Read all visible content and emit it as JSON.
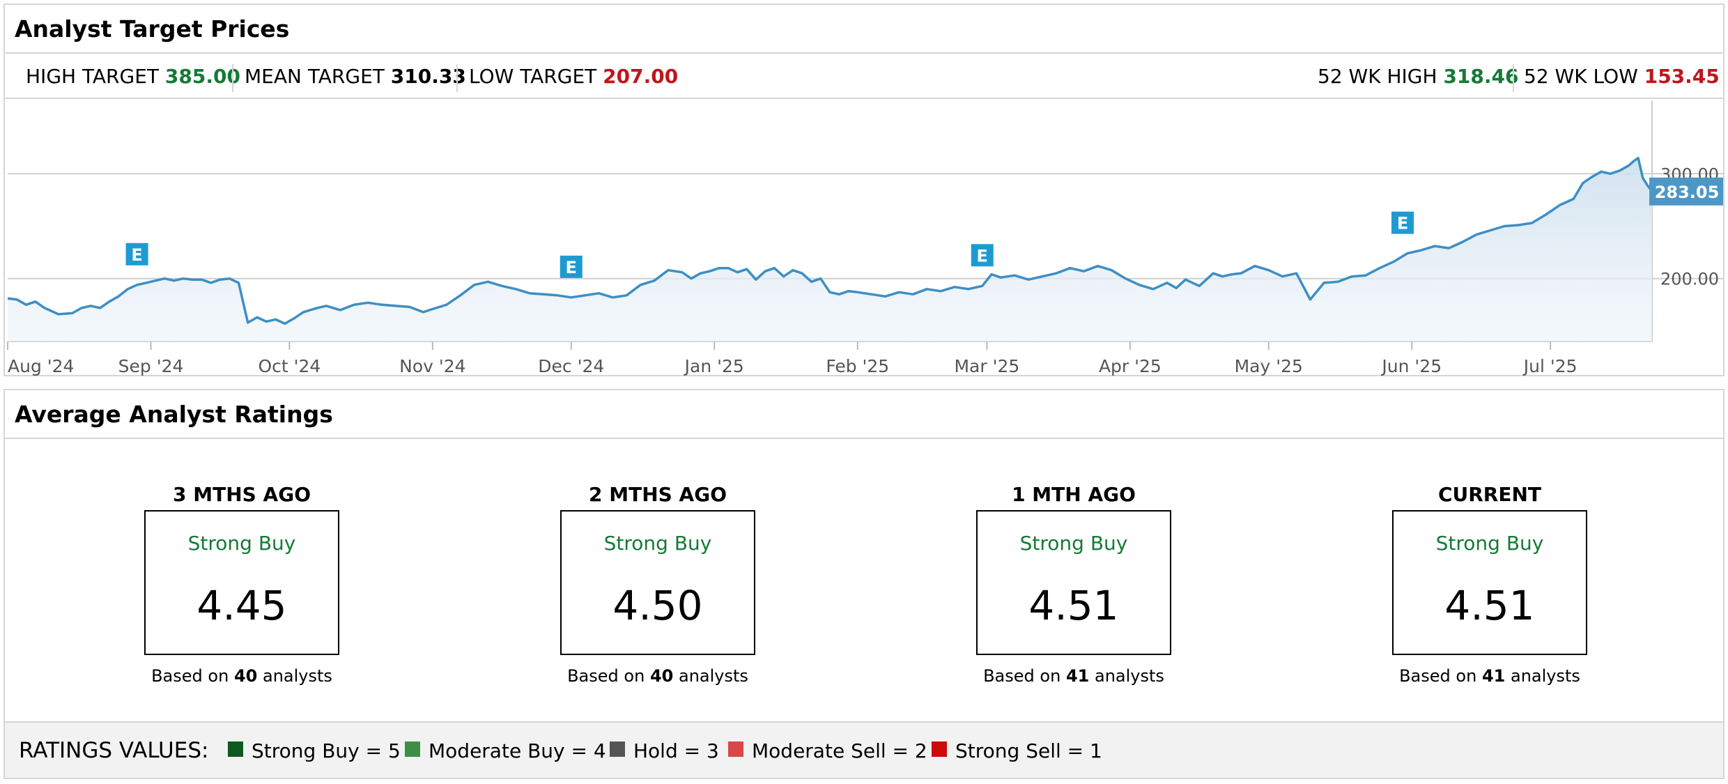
{
  "target_panel": {
    "title": "Analyst Target Prices",
    "high_target_label": "HIGH TARGET",
    "high_target_value": "385.00",
    "mean_target_label": "MEAN TARGET",
    "mean_target_value": "310.33",
    "low_target_label": "LOW TARGET",
    "low_target_value": "207.00",
    "wk52_high_label": "52 WK HIGH",
    "wk52_high_value": "318.46",
    "wk52_low_label": "52 WK LOW",
    "wk52_low_value": "153.45"
  },
  "colors": {
    "positive": "#157a36",
    "negative": "#c0151c",
    "line": "#3d8fc4",
    "earnings_marker": "#1d9bd1",
    "current_price_badge": "#4d97c7"
  },
  "chart_data": {
    "type": "area",
    "y_ticks": [
      "300.00",
      "200.00"
    ],
    "ylim": [
      140,
      370
    ],
    "x_tick_labels": [
      "Aug '24",
      "Sep '24",
      "Oct '24",
      "Nov '24",
      "Dec '24",
      "Jan '25",
      "Feb '25",
      "Mar '25",
      "Apr '25",
      "May '25",
      "Jun '25",
      "Jul '25"
    ],
    "x_tick_dates": [
      "2024-08-01",
      "2024-09-01",
      "2024-10-01",
      "2024-11-01",
      "2024-12-01",
      "2025-01-01",
      "2025-02-01",
      "2025-03-01",
      "2025-04-01",
      "2025-05-01",
      "2025-06-01",
      "2025-07-01"
    ],
    "x_range": [
      "2024-08-01",
      "2025-07-23"
    ],
    "current_price": "283.05",
    "earnings_marker_label": "E",
    "earnings_dates": [
      "2024-08-29",
      "2024-12-01",
      "2025-02-28",
      "2025-05-30"
    ],
    "series": [
      {
        "points": [
          [
            "2024-08-01",
            181
          ],
          [
            "2024-08-03",
            180
          ],
          [
            "2024-08-05",
            175
          ],
          [
            "2024-08-07",
            178
          ],
          [
            "2024-08-09",
            172
          ],
          [
            "2024-08-12",
            166
          ],
          [
            "2024-08-15",
            167
          ],
          [
            "2024-08-17",
            172
          ],
          [
            "2024-08-19",
            174
          ],
          [
            "2024-08-21",
            172
          ],
          [
            "2024-08-23",
            178
          ],
          [
            "2024-08-25",
            183
          ],
          [
            "2024-08-27",
            190
          ],
          [
            "2024-08-29",
            194
          ],
          [
            "2024-08-31",
            196
          ],
          [
            "2024-09-02",
            198
          ],
          [
            "2024-09-04",
            200
          ],
          [
            "2024-09-06",
            198
          ],
          [
            "2024-09-08",
            200
          ],
          [
            "2024-09-10",
            199
          ],
          [
            "2024-09-12",
            199
          ],
          [
            "2024-09-14",
            196
          ],
          [
            "2024-09-16",
            199
          ],
          [
            "2024-09-18",
            200
          ],
          [
            "2024-09-20",
            196
          ],
          [
            "2024-09-22",
            158
          ],
          [
            "2024-09-24",
            163
          ],
          [
            "2024-09-26",
            159
          ],
          [
            "2024-09-28",
            161
          ],
          [
            "2024-09-30",
            157
          ],
          [
            "2024-10-02",
            162
          ],
          [
            "2024-10-04",
            168
          ],
          [
            "2024-10-07",
            172
          ],
          [
            "2024-10-09",
            174
          ],
          [
            "2024-10-12",
            170
          ],
          [
            "2024-10-15",
            175
          ],
          [
            "2024-10-18",
            177
          ],
          [
            "2024-10-21",
            175
          ],
          [
            "2024-10-24",
            174
          ],
          [
            "2024-10-27",
            173
          ],
          [
            "2024-10-30",
            168
          ],
          [
            "2024-11-01",
            171
          ],
          [
            "2024-11-04",
            175
          ],
          [
            "2024-11-07",
            184
          ],
          [
            "2024-11-10",
            194
          ],
          [
            "2024-11-13",
            197
          ],
          [
            "2024-11-16",
            193
          ],
          [
            "2024-11-19",
            190
          ],
          [
            "2024-11-22",
            186
          ],
          [
            "2024-11-25",
            185
          ],
          [
            "2024-11-28",
            184
          ],
          [
            "2024-12-01",
            182
          ],
          [
            "2024-12-04",
            184
          ],
          [
            "2024-12-07",
            186
          ],
          [
            "2024-12-10",
            182
          ],
          [
            "2024-12-13",
            184
          ],
          [
            "2024-12-16",
            194
          ],
          [
            "2024-12-19",
            198
          ],
          [
            "2024-12-22",
            208
          ],
          [
            "2024-12-25",
            206
          ],
          [
            "2024-12-27",
            200
          ],
          [
            "2024-12-29",
            205
          ],
          [
            "2024-12-31",
            207
          ],
          [
            "2025-01-02",
            210
          ],
          [
            "2025-01-04",
            210
          ],
          [
            "2025-01-06",
            206
          ],
          [
            "2025-01-08",
            209
          ],
          [
            "2025-01-10",
            199
          ],
          [
            "2025-01-12",
            207
          ],
          [
            "2025-01-14",
            210
          ],
          [
            "2025-01-16",
            202
          ],
          [
            "2025-01-18",
            208
          ],
          [
            "2025-01-20",
            205
          ],
          [
            "2025-01-22",
            197
          ],
          [
            "2025-01-24",
            200
          ],
          [
            "2025-01-26",
            187
          ],
          [
            "2025-01-28",
            185
          ],
          [
            "2025-01-30",
            188
          ],
          [
            "2025-02-01",
            187
          ],
          [
            "2025-02-04",
            185
          ],
          [
            "2025-02-07",
            183
          ],
          [
            "2025-02-10",
            187
          ],
          [
            "2025-02-13",
            185
          ],
          [
            "2025-02-16",
            190
          ],
          [
            "2025-02-19",
            188
          ],
          [
            "2025-02-22",
            192
          ],
          [
            "2025-02-25",
            190
          ],
          [
            "2025-02-28",
            193
          ],
          [
            "2025-03-02",
            204
          ],
          [
            "2025-03-04",
            201
          ],
          [
            "2025-03-07",
            203
          ],
          [
            "2025-03-10",
            199
          ],
          [
            "2025-03-13",
            202
          ],
          [
            "2025-03-16",
            205
          ],
          [
            "2025-03-19",
            210
          ],
          [
            "2025-03-22",
            207
          ],
          [
            "2025-03-25",
            212
          ],
          [
            "2025-03-28",
            208
          ],
          [
            "2025-03-31",
            200
          ],
          [
            "2025-04-03",
            194
          ],
          [
            "2025-04-06",
            190
          ],
          [
            "2025-04-09",
            196
          ],
          [
            "2025-04-11",
            191
          ],
          [
            "2025-04-13",
            199
          ],
          [
            "2025-04-16",
            193
          ],
          [
            "2025-04-19",
            205
          ],
          [
            "2025-04-21",
            202
          ],
          [
            "2025-04-23",
            204
          ],
          [
            "2025-04-25",
            205
          ],
          [
            "2025-04-28",
            212
          ],
          [
            "2025-05-01",
            208
          ],
          [
            "2025-05-04",
            202
          ],
          [
            "2025-05-07",
            205
          ],
          [
            "2025-05-10",
            180
          ],
          [
            "2025-05-13",
            196
          ],
          [
            "2025-05-16",
            197
          ],
          [
            "2025-05-19",
            202
          ],
          [
            "2025-05-22",
            203
          ],
          [
            "2025-05-25",
            210
          ],
          [
            "2025-05-28",
            216
          ],
          [
            "2025-05-31",
            224
          ],
          [
            "2025-06-03",
            227
          ],
          [
            "2025-06-06",
            231
          ],
          [
            "2025-06-09",
            229
          ],
          [
            "2025-06-12",
            235
          ],
          [
            "2025-06-15",
            242
          ],
          [
            "2025-06-18",
            246
          ],
          [
            "2025-06-21",
            250
          ],
          [
            "2025-06-24",
            251
          ],
          [
            "2025-06-27",
            253
          ],
          [
            "2025-06-30",
            261
          ],
          [
            "2025-07-03",
            270
          ],
          [
            "2025-07-06",
            276
          ],
          [
            "2025-07-08",
            291
          ],
          [
            "2025-07-10",
            297
          ],
          [
            "2025-07-12",
            302
          ],
          [
            "2025-07-14",
            300
          ],
          [
            "2025-07-16",
            303
          ],
          [
            "2025-07-18",
            308
          ],
          [
            "2025-07-19",
            312
          ],
          [
            "2025-07-20",
            315
          ],
          [
            "2025-07-21",
            296
          ],
          [
            "2025-07-22",
            289
          ],
          [
            "2025-07-23",
            283
          ]
        ]
      }
    ]
  },
  "ratings_panel": {
    "title": "Average Analyst Ratings",
    "periods": [
      {
        "heading": "3 MTHS AGO",
        "label": "Strong Buy",
        "score": "4.45",
        "foot_prefix": "Based on",
        "count": "40",
        "foot_suffix": "analysts"
      },
      {
        "heading": "2 MTHS AGO",
        "label": "Strong Buy",
        "score": "4.50",
        "foot_prefix": "Based on",
        "count": "40",
        "foot_suffix": "analysts"
      },
      {
        "heading": "1 MTH AGO",
        "label": "Strong Buy",
        "score": "4.51",
        "foot_prefix": "Based on",
        "count": "41",
        "foot_suffix": "analysts"
      },
      {
        "heading": "CURRENT",
        "label": "Strong Buy",
        "score": "4.51",
        "foot_prefix": "Based on",
        "count": "41",
        "foot_suffix": "analysts"
      }
    ],
    "legend_title": "RATINGS VALUES:",
    "legend": [
      {
        "label": "Strong Buy = 5",
        "color": "#0e5a1e"
      },
      {
        "label": "Moderate Buy = 4",
        "color": "#3d8f45"
      },
      {
        "label": "Hold = 3",
        "color": "#555555"
      },
      {
        "label": "Moderate Sell = 2",
        "color": "#d94848"
      },
      {
        "label": "Strong Sell = 1",
        "color": "#cc0b0b"
      }
    ]
  }
}
